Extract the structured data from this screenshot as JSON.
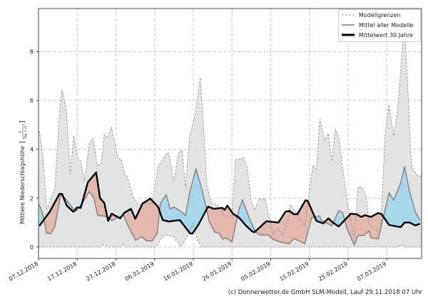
{
  "chart_data": {
    "type": "line",
    "title": "",
    "xlabel": "",
    "ylabel": "Mittlere Niederschlagshöhe",
    "ylabel_unit_numerator": "L",
    "ylabel_unit_denominator": "Tag × m²",
    "x_unit": "days since 07.12.2018",
    "xlim": [
      0,
      99
    ],
    "ylim": [
      -0.47,
      9.76
    ],
    "grid": true,
    "legend_position": "top-right",
    "x_ticks": [
      {
        "day": 0,
        "label": "07.12.2018"
      },
      {
        "day": 10,
        "label": "17.12.2018"
      },
      {
        "day": 20,
        "label": "27.12.2018"
      },
      {
        "day": 30,
        "label": "06.01.2019"
      },
      {
        "day": 40,
        "label": "16.01.2019"
      },
      {
        "day": 50,
        "label": "26.01.2019"
      },
      {
        "day": 60,
        "label": "05.02.2019"
      },
      {
        "day": 70,
        "label": "15.02.2019"
      },
      {
        "day": 80,
        "label": "25.02.2019"
      },
      {
        "day": 90,
        "label": "07.03.2019"
      }
    ],
    "y_ticks": [
      {
        "value": 0,
        "label": "0"
      },
      {
        "value": 2,
        "label": "2"
      },
      {
        "value": 4,
        "label": "4"
      },
      {
        "value": 6,
        "label": "6"
      },
      {
        "value": 8,
        "label": "8"
      }
    ],
    "series": [
      {
        "name": "Modellgrenzen (oben)",
        "legend": "Modellgrenzen",
        "color": "#8a8a8a",
        "points": [
          [
            0.2,
            4.75
          ],
          [
            1.1,
            3.78
          ],
          [
            2.1,
            1.53
          ],
          [
            4.2,
            2.36
          ],
          [
            5.4,
            5.43
          ],
          [
            6.1,
            6.45
          ],
          [
            7.2,
            5.57
          ],
          [
            8.2,
            3.0
          ],
          [
            9.1,
            4.55
          ],
          [
            10.1,
            3.67
          ],
          [
            10.9,
            3.5
          ],
          [
            11.9,
            2.72
          ],
          [
            13.1,
            4.21
          ],
          [
            14.1,
            4.45
          ],
          [
            15.2,
            3.33
          ],
          [
            16.2,
            3.43
          ],
          [
            17.0,
            4.6
          ],
          [
            17.7,
            4.45
          ],
          [
            18.9,
            4.9
          ],
          [
            20.5,
            3.64
          ],
          [
            21.4,
            3.6
          ],
          [
            22.3,
            2.96
          ],
          [
            22.9,
            2.9
          ],
          [
            24.5,
            2.02
          ],
          [
            25.7,
            1.73
          ],
          [
            28.1,
            1.78
          ],
          [
            29.4,
            1.78
          ],
          [
            30.9,
            3.29
          ],
          [
            32.5,
            3.68
          ],
          [
            33.1,
            3.84
          ],
          [
            33.7,
            3.84
          ],
          [
            35.0,
            2.7
          ],
          [
            36.2,
            3.84
          ],
          [
            37.1,
            3.97
          ],
          [
            38.0,
            2.41
          ],
          [
            39.0,
            4.46
          ],
          [
            40.5,
            5.43
          ],
          [
            41.8,
            6.94
          ],
          [
            42.7,
            4.9
          ],
          [
            43.5,
            2.51
          ],
          [
            44.7,
            1.78
          ],
          [
            46.3,
            1.73
          ],
          [
            48.1,
            1.25
          ],
          [
            50.0,
            1.25
          ],
          [
            50.9,
            3.58
          ],
          [
            52.2,
            3.6
          ],
          [
            53.0,
            3.66
          ],
          [
            53.9,
            3.27
          ],
          [
            54.9,
            1.93
          ],
          [
            55.8,
            1.5
          ],
          [
            57.0,
            1.97
          ],
          [
            58.6,
            1.97
          ],
          [
            59.5,
            1.25
          ],
          [
            60.5,
            0.52
          ],
          [
            61.8,
            0.77
          ],
          [
            63.0,
            0.48
          ],
          [
            64.5,
            1.07
          ],
          [
            65.0,
            1.73
          ],
          [
            66.0,
            1.54
          ],
          [
            68.8,
            0.86
          ],
          [
            70.9,
            3.34
          ],
          [
            71.8,
            3.2
          ],
          [
            72.7,
            5.24
          ],
          [
            74.0,
            4.36
          ],
          [
            74.9,
            4.65
          ],
          [
            75.8,
            3.5
          ],
          [
            76.7,
            4.85
          ],
          [
            77.6,
            4.46
          ],
          [
            79.8,
            1.83
          ],
          [
            81.6,
            0.37
          ],
          [
            82.6,
            2.46
          ],
          [
            83.5,
            2.46
          ],
          [
            84.7,
            2.07
          ],
          [
            85.4,
            0.96
          ],
          [
            87.2,
            0.67
          ],
          [
            88.4,
            0.67
          ],
          [
            89.6,
            4.65
          ],
          [
            90.6,
            5.82
          ],
          [
            91.8,
            4.55
          ],
          [
            92.7,
            5.43
          ],
          [
            94.6,
            9.2
          ],
          [
            96.4,
            3.3
          ],
          [
            98.0,
            2.9
          ],
          [
            99.0,
            2.9
          ]
        ]
      },
      {
        "name": "Modellgrenzen (unten)",
        "legend": "Modellgrenzen",
        "color": "#8a8a8a",
        "points": [
          [
            0,
            0
          ],
          [
            16,
            0
          ],
          [
            17,
            0.1
          ],
          [
            18,
            0
          ],
          [
            21.5,
            0
          ],
          [
            22,
            0.15
          ],
          [
            22.6,
            0
          ],
          [
            30.5,
            0
          ],
          [
            31.9,
            0.4
          ],
          [
            33.1,
            0.49
          ],
          [
            35.0,
            0.4
          ],
          [
            36.8,
            0
          ],
          [
            38.7,
            0.48
          ],
          [
            39.9,
            0.97
          ],
          [
            40.8,
            0.4
          ],
          [
            42,
            0
          ],
          [
            93,
            0
          ],
          [
            93.8,
            0.1
          ],
          [
            94.6,
            0
          ],
          [
            99,
            0
          ]
        ]
      },
      {
        "name": "Mittel aller Modelle",
        "color": "#7a7a7a",
        "points": [
          [
            0.2,
            1.73
          ],
          [
            1.1,
            1.34
          ],
          [
            2.1,
            0.56
          ],
          [
            3.2,
            0.55
          ],
          [
            4.2,
            0.82
          ],
          [
            5.7,
            2.1
          ],
          [
            6.9,
            2.0
          ],
          [
            9.4,
            1.46
          ],
          [
            10.0,
            1.5
          ],
          [
            11.9,
            1.93
          ],
          [
            13.1,
            2.27
          ],
          [
            14.3,
            2.0
          ],
          [
            15.3,
            1.29
          ],
          [
            17.0,
            1.26
          ],
          [
            18.0,
            1.23
          ],
          [
            18.9,
            1.07
          ],
          [
            20.5,
            1.2
          ],
          [
            22.0,
            1.29
          ],
          [
            23.3,
            0.81
          ],
          [
            25.1,
            0.27
          ],
          [
            26.6,
            0.42
          ],
          [
            27.9,
            0.25
          ],
          [
            29.4,
            0.25
          ],
          [
            30.7,
            0.56
          ],
          [
            31.2,
            1.34
          ],
          [
            31.5,
            1.78
          ],
          [
            33.0,
            2.14
          ],
          [
            34.0,
            1.56
          ],
          [
            35.0,
            1.63
          ],
          [
            36.5,
            1.49
          ],
          [
            38.0,
            1.29
          ],
          [
            39.2,
            2.32
          ],
          [
            40.7,
            3.19
          ],
          [
            42.3,
            2.32
          ],
          [
            43.3,
            1.63
          ],
          [
            44.1,
            1.05
          ],
          [
            45.5,
            0.61
          ],
          [
            46.8,
            0.55
          ],
          [
            47.5,
            0.32
          ],
          [
            48.7,
            0.36
          ],
          [
            50.0,
            0.2
          ],
          [
            51.8,
            1.54
          ],
          [
            52.7,
            1.93
          ],
          [
            54.3,
            1.25
          ],
          [
            55.8,
            0.69
          ],
          [
            57.0,
            0.5
          ],
          [
            59.5,
            0.48
          ],
          [
            60.5,
            0.32
          ],
          [
            62.5,
            0.2
          ],
          [
            64.8,
            0.13
          ],
          [
            66.0,
            0.35
          ],
          [
            68.8,
            0.13
          ],
          [
            70.6,
            1.2
          ],
          [
            72.7,
            1.27
          ],
          [
            73.0,
            1.1
          ],
          [
            75.8,
            0.86
          ],
          [
            77.6,
            1.49
          ],
          [
            78.6,
            1.4
          ],
          [
            79.7,
            0.76
          ],
          [
            81.6,
            0.08
          ],
          [
            82.6,
            0.47
          ],
          [
            84.1,
            0.47
          ],
          [
            85.4,
            0.66
          ],
          [
            85.9,
            0.37
          ],
          [
            87.8,
            0.33
          ],
          [
            89.0,
            1.14
          ],
          [
            90.6,
            2.22
          ],
          [
            91.8,
            1.93
          ],
          [
            93.6,
            2.61
          ],
          [
            94.6,
            3.29
          ],
          [
            95.9,
            2.26
          ],
          [
            97.4,
            1.43
          ],
          [
            98.6,
            1.09
          ]
        ]
      },
      {
        "name": "Mittelwert 30 Jahre",
        "color": "#000000",
        "points": [
          [
            0.2,
            0.86
          ],
          [
            2.9,
            1.44
          ],
          [
            5.4,
            2.17
          ],
          [
            6.1,
            2.17
          ],
          [
            7.3,
            1.69
          ],
          [
            9.0,
            1.44
          ],
          [
            10.0,
            1.62
          ],
          [
            10.9,
            1.6
          ],
          [
            12.8,
            2.66
          ],
          [
            14.9,
            3.05
          ],
          [
            15.9,
            2.0
          ],
          [
            17.0,
            1.8
          ],
          [
            18.0,
            1.07
          ],
          [
            18.9,
            1.36
          ],
          [
            21.1,
            1.17
          ],
          [
            22.2,
            1.4
          ],
          [
            23.9,
            1.56
          ],
          [
            25.0,
            1.15
          ],
          [
            26.9,
            1.78
          ],
          [
            28.9,
            1.98
          ],
          [
            30.9,
            1.64
          ],
          [
            32.1,
            1.1
          ],
          [
            33.7,
            1.04
          ],
          [
            36.5,
            1.1
          ],
          [
            39.2,
            0.55
          ],
          [
            39.8,
            0.55
          ],
          [
            41.3,
            0.9
          ],
          [
            43.8,
            1.65
          ],
          [
            45.3,
            1.56
          ],
          [
            47.5,
            1.6
          ],
          [
            48.1,
            1.52
          ],
          [
            48.8,
            1.69
          ],
          [
            50.3,
            1.36
          ],
          [
            51.8,
            1.2
          ],
          [
            53.7,
            0.86
          ],
          [
            55.2,
            0.64
          ],
          [
            55.8,
            0.6
          ],
          [
            58.9,
            1.05
          ],
          [
            62.0,
            1.0
          ],
          [
            63.8,
            1.44
          ],
          [
            64.8,
            1.48
          ],
          [
            66.0,
            1.34
          ],
          [
            66.9,
            1.34
          ],
          [
            69.0,
            1.91
          ],
          [
            69.6,
            1.88
          ],
          [
            71.8,
            1.07
          ],
          [
            73.6,
            0.96
          ],
          [
            74.9,
            1.17
          ],
          [
            76.1,
            1.0
          ],
          [
            77.6,
            0.84
          ],
          [
            80.7,
            1.36
          ],
          [
            82.2,
            1.34
          ],
          [
            83.4,
            1.23
          ],
          [
            84.4,
            1.3
          ],
          [
            85.9,
            1.23
          ],
          [
            87.8,
            1.39
          ],
          [
            88.7,
            1.34
          ],
          [
            90.6,
            0.9
          ],
          [
            93.6,
            0.81
          ],
          [
            94.6,
            1.0
          ],
          [
            95.9,
            1.0
          ],
          [
            97.4,
            0.88
          ],
          [
            98.6,
            0.95
          ]
        ]
      }
    ],
    "fill_colors": {
      "range": "#e3e3e3",
      "above_normal": "#a8d6ea",
      "below_normal": "#e3b8ad"
    }
  },
  "legend": {
    "items": [
      "Modellgrenzen",
      "Mittel aller Modelle",
      "Mittelwert 30 Jahre"
    ]
  },
  "footer": "(c) Donnerwetter.de GmbH SLM-Modell, Lauf 29.11.2018 07 Uhr"
}
